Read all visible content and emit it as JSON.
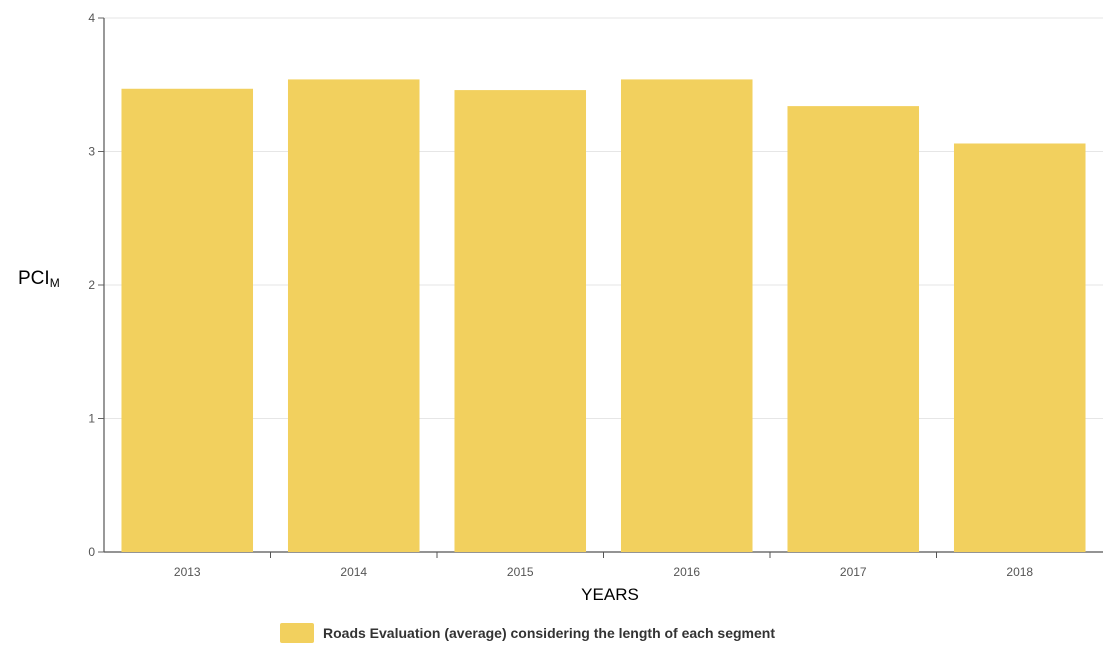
{
  "chart_data": {
    "type": "bar",
    "categories": [
      "2013",
      "2014",
      "2015",
      "2016",
      "2017",
      "2018"
    ],
    "series": [
      {
        "name": "Roads Evaluation (average) considering the length of each segment",
        "values": [
          3.47,
          3.54,
          3.46,
          3.54,
          3.34,
          3.06
        ]
      }
    ],
    "ylabel": "PCI",
    "ylabel_subscript": "M",
    "xlabel": "YEARS",
    "ylim": [
      0,
      4
    ],
    "yticks": [
      "0",
      "1",
      "2",
      "3",
      "4"
    ],
    "grid": true,
    "legend_position": "bottom",
    "bar_color": "#F2D05E"
  }
}
